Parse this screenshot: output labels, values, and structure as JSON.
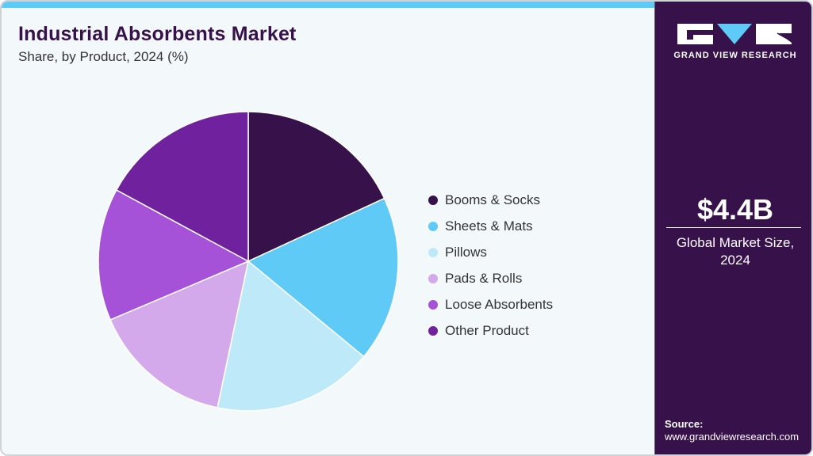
{
  "header": {
    "title": "Industrial Absorbents Market",
    "subtitle": "Share, by Product, 2024 (%)"
  },
  "colors": {
    "accent_bar": "#5ecaf5",
    "panel_bg": "#37114a",
    "title_color": "#37114a",
    "chart_bg": "#f3f8fb"
  },
  "legend": {
    "items": [
      {
        "label": "Booms & Socks",
        "color": "#37114a"
      },
      {
        "label": "Sheets & Mats",
        "color": "#5ecaf5"
      },
      {
        "label": "Pillows",
        "color": "#bde9f9"
      },
      {
        "label": "Pads & Rolls",
        "color": "#d4a9ec"
      },
      {
        "label": "Loose Absorbents",
        "color": "#a551d8"
      },
      {
        "label": "Other Product",
        "color": "#70219d"
      }
    ]
  },
  "side_panel": {
    "brand": "GRAND VIEW RESEARCH",
    "market_value": "$4.4B",
    "market_label_line1": "Global Market Size,",
    "market_label_line2": "2024",
    "source_label": "Source:",
    "source_url": "www.grandviewresearch.com"
  },
  "chart_data": {
    "type": "pie",
    "title": "Industrial Absorbents Market",
    "subtitle": "Share, by Product, 2024 (%)",
    "categories": [
      "Booms & Socks",
      "Sheets & Mats",
      "Pillows",
      "Pads & Rolls",
      "Loose Absorbents",
      "Other Product"
    ],
    "values": [
      18.1,
      17.9,
      17.3,
      15.3,
      14.3,
      17.1
    ],
    "colors": [
      "#37114a",
      "#5ecaf5",
      "#bde9f9",
      "#d4a9ec",
      "#a551d8",
      "#70219d"
    ],
    "start_angle_deg": 0,
    "direction": "clockwise",
    "legend_position": "right",
    "data_labels": false
  }
}
